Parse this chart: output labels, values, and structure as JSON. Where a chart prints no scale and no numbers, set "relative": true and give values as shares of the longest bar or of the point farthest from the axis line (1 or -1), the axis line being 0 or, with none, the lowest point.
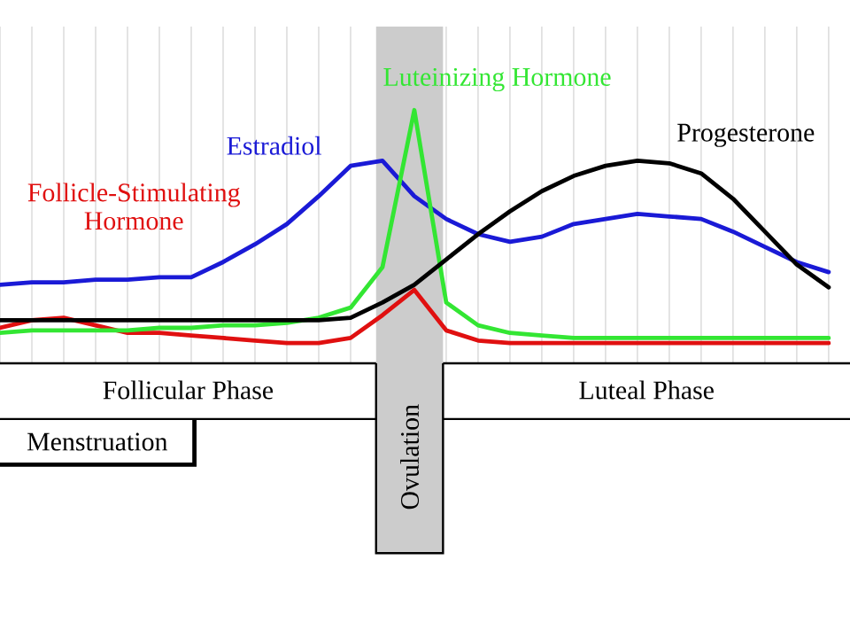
{
  "chart_data": {
    "type": "line",
    "relative": true,
    "categories": [
      null,
      null,
      null,
      null,
      null,
      null,
      null,
      null,
      null,
      null,
      null,
      null,
      null,
      null,
      null,
      null,
      null,
      null,
      null,
      null,
      null,
      null,
      null,
      null,
      null,
      null,
      null
    ],
    "grid": "x",
    "marker": "none",
    "line_style": "solid",
    "series": [
      {
        "name": "Follicle-Stimulating Hormone",
        "color": "#e01010",
        "values": [
          0.14,
          0.17,
          0.18,
          0.15,
          0.12,
          0.12,
          0.11,
          0.1,
          0.09,
          0.08,
          0.08,
          0.1,
          0.19,
          0.29,
          0.13,
          0.09,
          0.08,
          0.08,
          0.08,
          0.08,
          0.08,
          0.08,
          0.08,
          0.08,
          0.08,
          0.08,
          0.08
        ]
      },
      {
        "name": "Estradiol",
        "color": "#1a1ad6",
        "values": [
          0.31,
          0.32,
          0.32,
          0.33,
          0.33,
          0.34,
          0.34,
          0.4,
          0.47,
          0.55,
          0.66,
          0.78,
          0.8,
          0.66,
          0.57,
          0.51,
          0.48,
          0.5,
          0.55,
          0.57,
          0.59,
          0.58,
          0.57,
          0.52,
          0.46,
          0.4,
          0.36
        ]
      },
      {
        "name": "Luteinizing Hormone",
        "color": "#33e633",
        "values": [
          0.12,
          0.13,
          0.13,
          0.13,
          0.13,
          0.14,
          0.14,
          0.15,
          0.15,
          0.16,
          0.18,
          0.22,
          0.38,
          1,
          0.24,
          0.15,
          0.12,
          0.11,
          0.1,
          0.1,
          0.1,
          0.1,
          0.1,
          0.1,
          0.1,
          0.1,
          0.1
        ]
      },
      {
        "name": "Progesterone",
        "color": "#000000",
        "values": [
          0.17,
          0.17,
          0.17,
          0.17,
          0.17,
          0.17,
          0.17,
          0.17,
          0.17,
          0.17,
          0.17,
          0.18,
          0.24,
          0.31,
          0.41,
          0.51,
          0.6,
          0.68,
          0.74,
          0.78,
          0.8,
          0.79,
          0.75,
          0.65,
          0.52,
          0.39,
          0.3
        ]
      }
    ],
    "annotations": [
      "Follicular Phase",
      "Luteal Phase",
      "Menstruation",
      "Ovulation"
    ]
  }
}
